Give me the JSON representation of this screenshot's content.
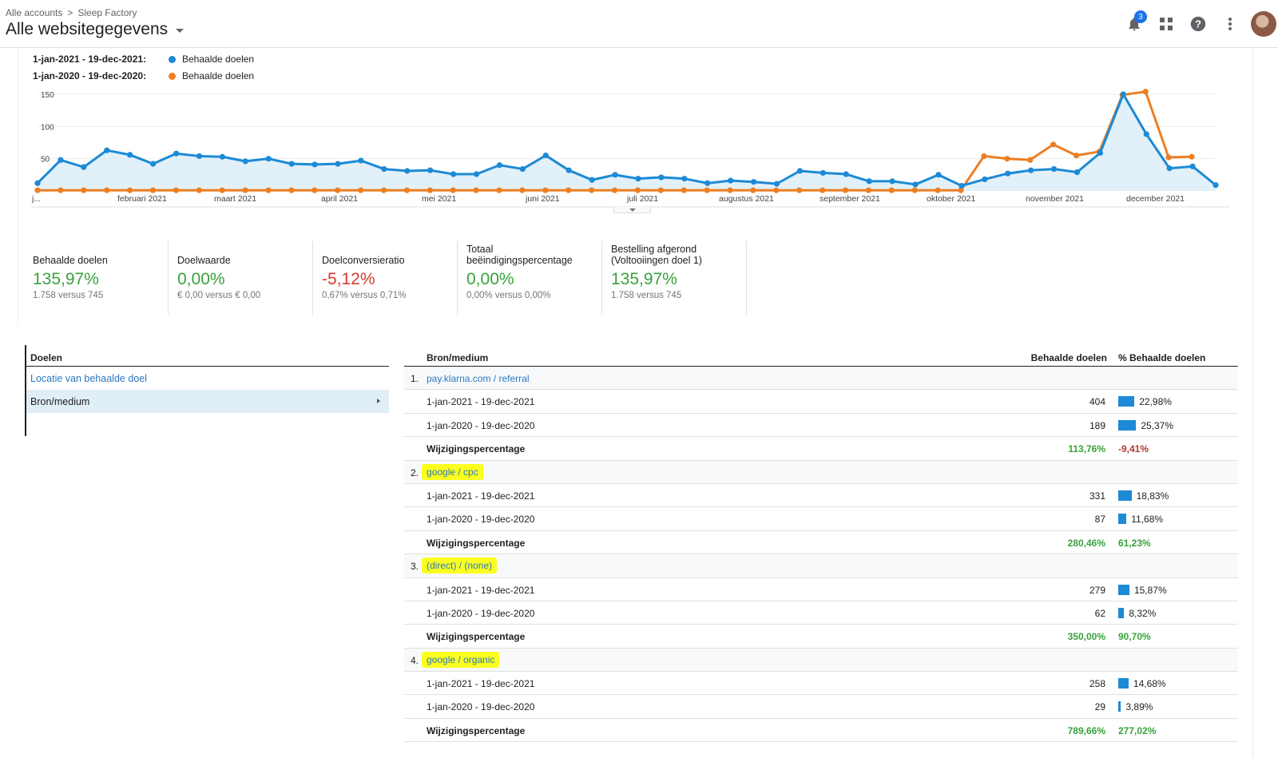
{
  "header": {
    "breadcrumb_root": "Alle accounts",
    "breadcrumb_sep": ">",
    "breadcrumb_account": "Sleep Factory",
    "view_title": "Alle websitegegevens",
    "notification_count": "3",
    "icons": [
      "bell-icon",
      "apps-grid-icon",
      "help-icon",
      "more-vert-icon",
      "avatar"
    ]
  },
  "legend": [
    {
      "range": "1-jan-2021 - 19-dec-2021:",
      "label": "Behaalde doelen",
      "color": "#1c8ad5"
    },
    {
      "range": "1-jan-2020 - 19-dec-2020:",
      "label": "Behaalde doelen",
      "color": "#ec7f23"
    }
  ],
  "chart_data": {
    "type": "line",
    "ylim": [
      0,
      150
    ],
    "y_ticks": [
      "50",
      "100",
      "150"
    ],
    "x_tick_labels": [
      "j...",
      "februari 2021",
      "maart 2021",
      "april 2021",
      "mei 2021",
      "juni 2021",
      "juli 2021",
      "augustus 2021",
      "september 2021",
      "oktober 2021",
      "november 2021",
      "december 2021"
    ],
    "series": [
      {
        "name": "1-jan-2021 - 19-dec-2021",
        "color": "#1c8ad5",
        "fill": true,
        "values": [
          12,
          48,
          37,
          63,
          56,
          42,
          58,
          54,
          53,
          46,
          50,
          42,
          41,
          42,
          47,
          34,
          31,
          32,
          26,
          26,
          40,
          34,
          55,
          32,
          17,
          25,
          19,
          21,
          19,
          12,
          16,
          14,
          11,
          31,
          28,
          26,
          15,
          15,
          10,
          25,
          8,
          18,
          27,
          32,
          34,
          29,
          59,
          150,
          88,
          35,
          38,
          9
        ]
      },
      {
        "name": "1-jan-2020 - 19-dec-2020",
        "color": "#ec7f23",
        "fill": false,
        "values": [
          1,
          1,
          1,
          1,
          1,
          1,
          1,
          1,
          1,
          1,
          1,
          1,
          1,
          1,
          1,
          1,
          1,
          1,
          1,
          1,
          1,
          1,
          1,
          1,
          1,
          1,
          1,
          1,
          1,
          1,
          1,
          1,
          1,
          1,
          1,
          1,
          1,
          1,
          1,
          1,
          1,
          54,
          50,
          48,
          72,
          55,
          61,
          149,
          154,
          52,
          53
        ]
      }
    ]
  },
  "scorecards": [
    {
      "title": "Behaalde doelen",
      "value": "135,97%",
      "value_color": "#38a23b",
      "compare": "1.758 versus 745"
    },
    {
      "title": "Doelwaarde",
      "value": "0,00%",
      "value_color": "#38a23b",
      "compare": "€ 0,00 versus € 0,00"
    },
    {
      "title": "Doelconversieratio",
      "value": "-5,12%",
      "value_color": "#d93a2e",
      "compare": "0,67% versus 0,71%"
    },
    {
      "title": "Totaal beëindigingspercentage",
      "value": "0,00%",
      "value_color": "#38a23b",
      "compare": "0,00% versus 0,00%"
    },
    {
      "title": "Bestelling afgerond (Voltooiingen doel 1)",
      "value": "135,97%",
      "value_color": "#38a23b",
      "compare": "1.758 versus 745"
    }
  ],
  "goals_panel": {
    "header": "Doelen",
    "items": [
      {
        "label": "Locatie van behaalde doel",
        "selected": false
      },
      {
        "label": "Bron/medium",
        "selected": true
      }
    ]
  },
  "table": {
    "col_source": "Bron/medium",
    "col_goals": "Behaalde doelen",
    "col_pct": "% Behaalde doelen",
    "groups": [
      {
        "num": "1.",
        "source": "pay.klarna.com / referral",
        "highlight": false,
        "rows": [
          {
            "label": "1-jan-2021 - 19-dec-2021",
            "value": "404",
            "pct": "22,98%",
            "bar": 22.98
          },
          {
            "label": "1-jan-2020 - 19-dec-2020",
            "value": "189",
            "pct": "25,37%",
            "bar": 25.37
          }
        ],
        "change": {
          "label": "Wijzigingspercentage",
          "value": "113,76%",
          "pct": "-9,41%",
          "pct_negative": true
        }
      },
      {
        "num": "2.",
        "source": "google / cpc",
        "highlight": true,
        "rows": [
          {
            "label": "1-jan-2021 - 19-dec-2021",
            "value": "331",
            "pct": "18,83%",
            "bar": 18.83
          },
          {
            "label": "1-jan-2020 - 19-dec-2020",
            "value": "87",
            "pct": "11,68%",
            "bar": 11.68
          }
        ],
        "change": {
          "label": "Wijzigingspercentage",
          "value": "280,46%",
          "pct": "61,23%",
          "pct_negative": false
        }
      },
      {
        "num": "3.",
        "source": "(direct) / (none)",
        "highlight": true,
        "rows": [
          {
            "label": "1-jan-2021 - 19-dec-2021",
            "value": "279",
            "pct": "15,87%",
            "bar": 15.87
          },
          {
            "label": "1-jan-2020 - 19-dec-2020",
            "value": "62",
            "pct": "8,32%",
            "bar": 8.32
          }
        ],
        "change": {
          "label": "Wijzigingspercentage",
          "value": "350,00%",
          "pct": "90,70%",
          "pct_negative": false
        }
      },
      {
        "num": "4.",
        "source": "google / organic",
        "highlight": true,
        "rows": [
          {
            "label": "1-jan-2021 - 19-dec-2021",
            "value": "258",
            "pct": "14,68%",
            "bar": 14.68
          },
          {
            "label": "1-jan-2020 - 19-dec-2020",
            "value": "29",
            "pct": "3,89%",
            "bar": 3.89
          }
        ],
        "change": {
          "label": "Wijzigingspercentage",
          "value": "789,66%",
          "pct": "277,02%",
          "pct_negative": false
        }
      }
    ]
  }
}
